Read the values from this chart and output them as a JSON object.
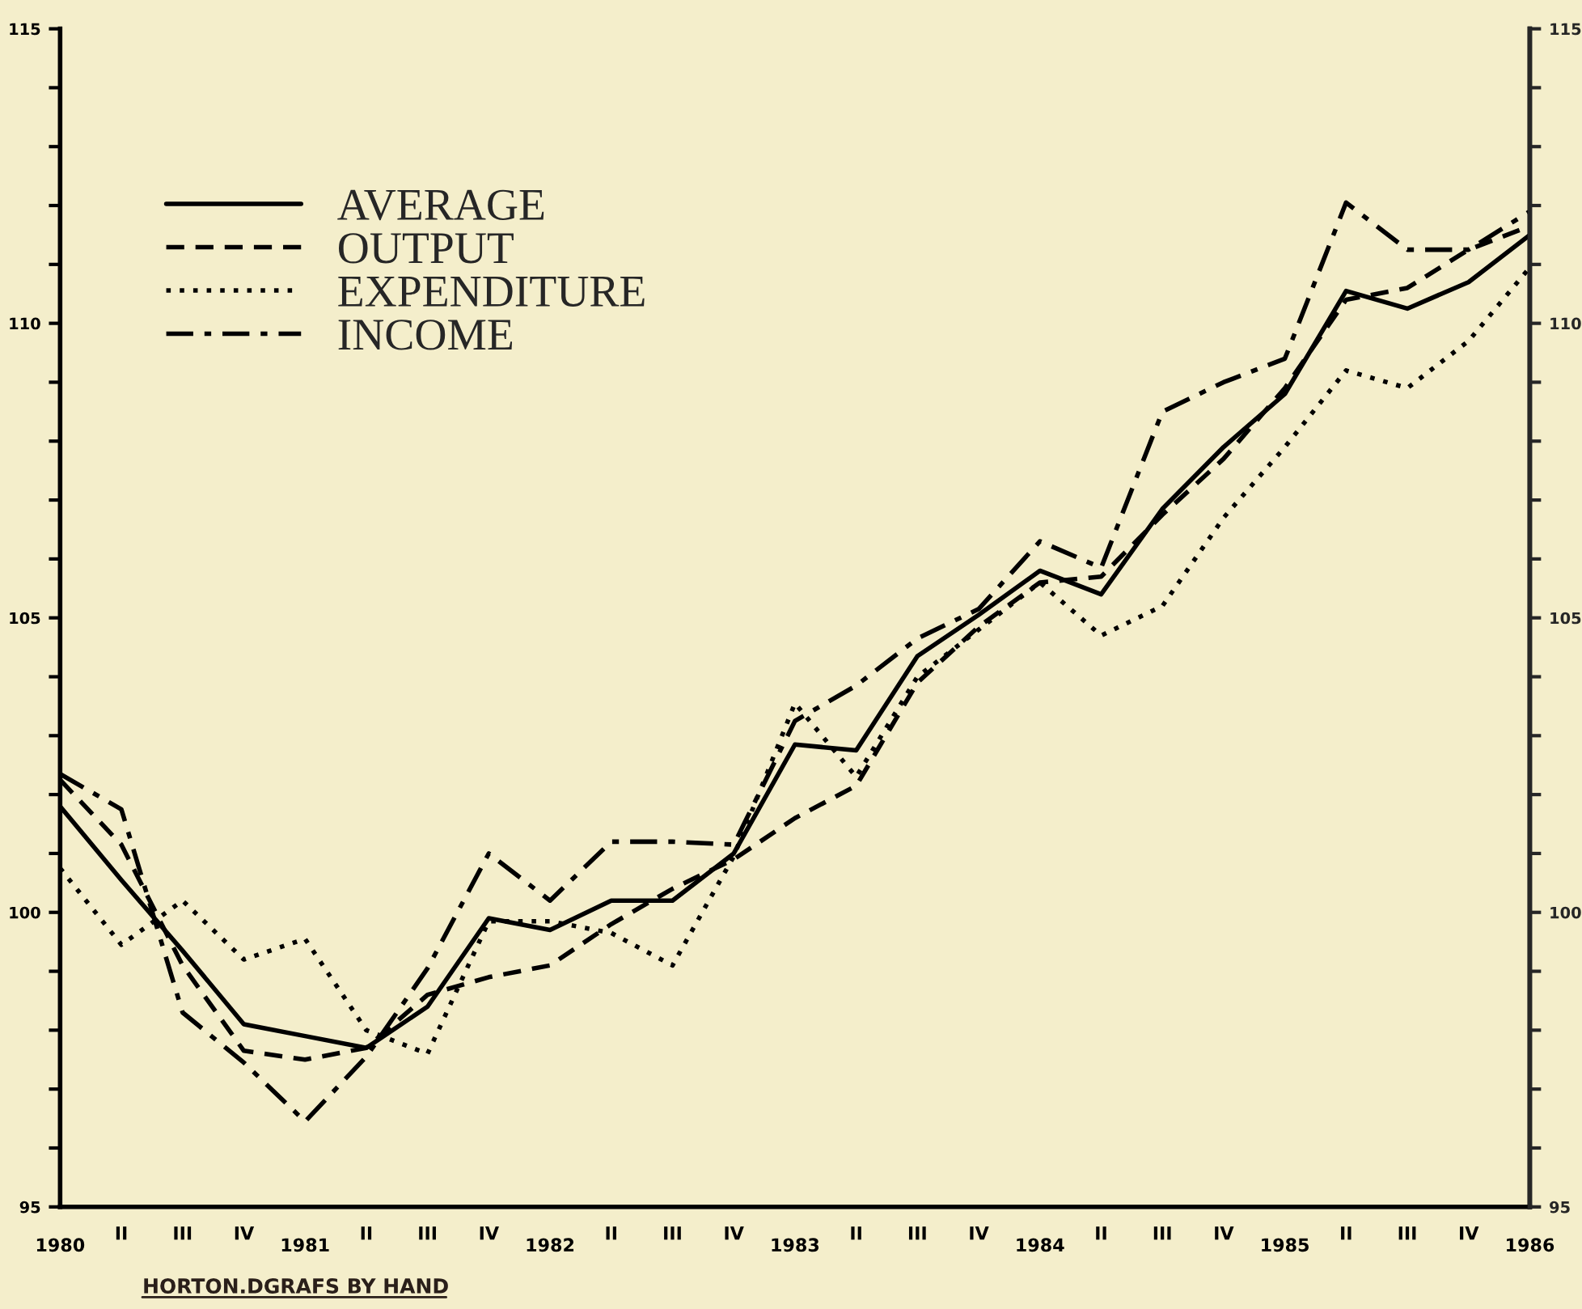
{
  "chart_data": {
    "type": "line",
    "categories": [
      "1980",
      "II",
      "III",
      "IV",
      "1981",
      "II",
      "III",
      "IV",
      "1982",
      "II",
      "III",
      "IV",
      "1983",
      "II",
      "III",
      "IV",
      "1984",
      "II",
      "III",
      "IV",
      "1985",
      "II",
      "III",
      "IV",
      "1986"
    ],
    "series": [
      {
        "name": "AVERAGE",
        "color": "#000000",
        "line_style": "solid",
        "values": [
          101.8,
          100.55,
          99.35,
          98.1,
          97.9,
          97.7,
          98.4,
          99.9,
          99.7,
          100.2,
          100.2,
          101.0,
          102.85,
          102.75,
          104.35,
          105.05,
          105.8,
          105.4,
          106.85,
          107.9,
          108.8,
          110.55,
          110.25,
          110.7,
          111.5
        ]
      },
      {
        "name": "OUTPUT",
        "color": "#000000",
        "line_style": "dashed",
        "values": [
          102.25,
          101.15,
          99.1,
          97.65,
          97.5,
          97.7,
          98.6,
          98.9,
          99.1,
          99.8,
          100.4,
          100.9,
          101.6,
          102.15,
          103.9,
          104.85,
          105.6,
          105.7,
          106.75,
          107.7,
          108.9,
          110.4,
          110.6,
          111.25,
          111.65
        ]
      },
      {
        "name": "EXPENDITURE",
        "color": "#000000",
        "line_style": "dotted",
        "values": [
          100.75,
          99.45,
          100.2,
          99.2,
          99.55,
          98.0,
          97.6,
          99.85,
          99.85,
          99.65,
          99.1,
          100.95,
          103.55,
          102.3,
          104.0,
          104.8,
          105.6,
          104.7,
          105.2,
          106.7,
          107.9,
          109.2,
          108.9,
          109.7,
          110.95
        ]
      },
      {
        "name": "INCOME",
        "color": "#000000",
        "line_style": "dashdot",
        "values": [
          102.35,
          101.75,
          98.3,
          97.45,
          96.45,
          97.55,
          99.05,
          101.0,
          100.2,
          101.2,
          101.2,
          101.15,
          103.25,
          103.85,
          104.65,
          105.15,
          106.3,
          105.85,
          108.5,
          109.0,
          109.4,
          112.05,
          111.25,
          111.25,
          111.9
        ]
      }
    ],
    "ylim": [
      95,
      115
    ],
    "yticks": [
      95,
      {
        "value": 96,
        "label": null
      },
      {
        "value": 97,
        "label": null
      },
      {
        "value": 98,
        "label": null
      },
      {
        "value": 99,
        "label": null
      },
      100,
      {
        "value": 101,
        "label": null
      },
      {
        "value": 102,
        "label": null
      },
      {
        "value": 103,
        "label": null
      },
      {
        "value": 104,
        "label": null
      },
      105,
      {
        "value": 106,
        "label": null
      },
      {
        "value": 107,
        "label": null
      },
      {
        "value": 108,
        "label": null
      },
      {
        "value": 109,
        "label": null
      },
      110,
      {
        "value": 111,
        "label": null
      },
      {
        "value": 112,
        "label": null
      },
      {
        "value": 113,
        "label": null
      },
      {
        "value": 114,
        "label": null
      },
      115
    ],
    "y2lim": [
      95,
      115
    ],
    "y2ticks": [
      95,
      {
        "value": 96,
        "label": null
      },
      {
        "value": 97,
        "label": null
      },
      {
        "value": 98,
        "label": null
      },
      {
        "value": 99,
        "label": null
      },
      100,
      {
        "value": 101,
        "label": null
      },
      {
        "value": 102,
        "label": null
      },
      {
        "value": 103,
        "label": null
      },
      {
        "value": 104,
        "label": null
      },
      105,
      {
        "value": 106,
        "label": null
      },
      {
        "value": 107,
        "label": null
      },
      {
        "value": 108,
        "label": null
      },
      {
        "value": 109,
        "label": null
      },
      110,
      {
        "value": 111,
        "label": null
      },
      {
        "value": 112,
        "label": null
      },
      {
        "value": 113,
        "label": null
      },
      {
        "value": 114,
        "label": null
      },
      115
    ],
    "legend": "top left",
    "grid": false,
    "annotations": [
      "HORTON.DGRAFS BY HAND"
    ]
  }
}
